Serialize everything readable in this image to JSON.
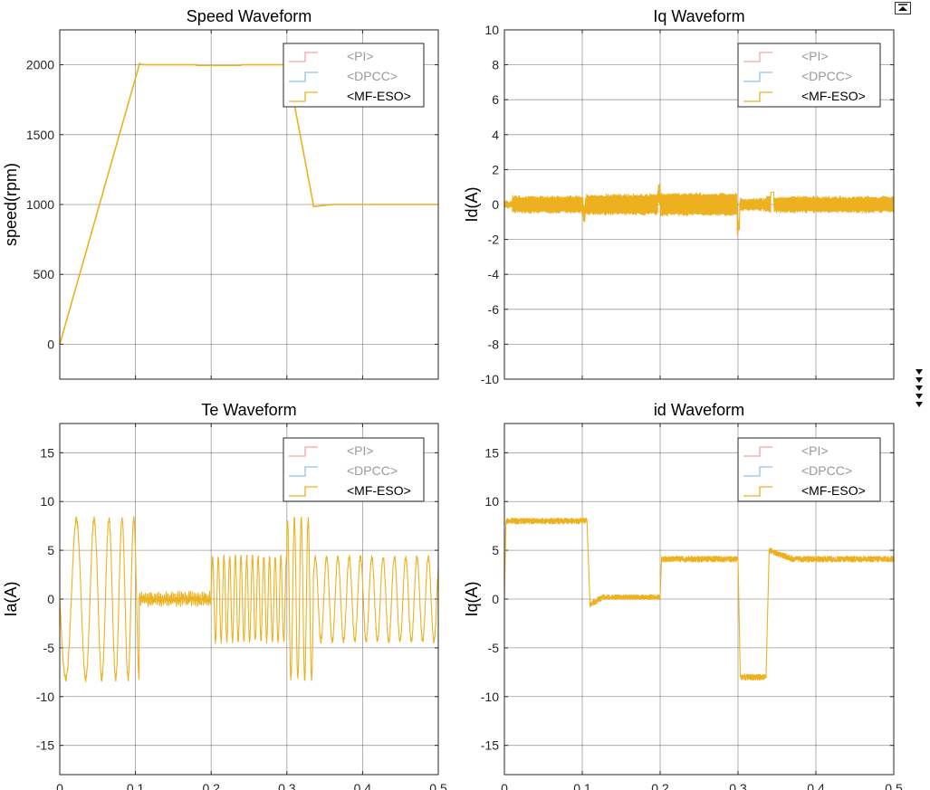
{
  "colors": {
    "pi": "#F4A3A0",
    "dpcc": "#8FC3E9",
    "mf_eso": "#EDB120",
    "grid": "#262626",
    "legend_dim_text": "#999999",
    "legend_text": "#000000"
  },
  "toolbar": {
    "expand_icon": "expand-up-icon"
  },
  "chart_data": [
    {
      "type": "line",
      "title": "Speed Waveform",
      "xlabel": "",
      "ylabel": "speed(rpm)",
      "xlim": [
        0,
        0.5
      ],
      "ylim": [
        -250,
        2250
      ],
      "xticks": [
        0,
        0.1,
        0.2,
        0.3,
        0.4,
        0.5
      ],
      "yticks": [
        0,
        500,
        1000,
        1500,
        2000
      ],
      "ytick_labels": [
        "0",
        "500",
        "1000",
        "1500",
        "2000"
      ],
      "show_xtick_labels": false,
      "grid": true,
      "legend": [
        "<PI>",
        "<DPCC>",
        "<MF-ESO>"
      ],
      "legend_position": "top-right",
      "series": [
        {
          "name": "<MF-ESO>",
          "kind": "speed"
        }
      ]
    },
    {
      "type": "line",
      "title": "Iq Waveform",
      "xlabel": "",
      "ylabel": "Id(A)",
      "xlim": [
        0,
        0.5
      ],
      "ylim": [
        -10,
        10
      ],
      "xticks": [
        0,
        0.1,
        0.2,
        0.3,
        0.4,
        0.5
      ],
      "yticks": [
        -10,
        -8,
        -6,
        -4,
        -2,
        0,
        2,
        4,
        6,
        8,
        10
      ],
      "ytick_labels": [
        "-10",
        "-8",
        "-6",
        "-4",
        "-2",
        "0",
        "2",
        "4",
        "6",
        "8",
        "10"
      ],
      "show_xtick_labels": false,
      "grid": true,
      "legend": [
        "<PI>",
        "<DPCC>",
        "<MF-ESO>"
      ],
      "legend_position": "top-right",
      "series": [
        {
          "name": "<MF-ESO>",
          "kind": "id_ripple"
        }
      ]
    },
    {
      "type": "line",
      "title": "Te Waveform",
      "xlabel": "",
      "ylabel": "Ia(A)",
      "xlim": [
        0,
        0.5
      ],
      "ylim": [
        -18,
        18
      ],
      "xticks": [
        0,
        0.1,
        0.2,
        0.3,
        0.4,
        0.5
      ],
      "xtick_labels": [
        "0",
        "0.1",
        "0.2",
        "0.3",
        "0.4",
        "0.5"
      ],
      "yticks": [
        -15,
        -10,
        -5,
        0,
        5,
        10,
        15
      ],
      "ytick_labels": [
        "-15",
        "-10",
        "-5",
        "0",
        "5",
        "10",
        "15"
      ],
      "show_xtick_labels": true,
      "grid": true,
      "legend": [
        "<PI>",
        "<DPCC>",
        "<MF-ESO>"
      ],
      "legend_position": "top-right",
      "series": [
        {
          "name": "<MF-ESO>",
          "kind": "phase_current"
        }
      ]
    },
    {
      "type": "line",
      "title": "id Waveform",
      "xlabel": "",
      "ylabel": "Iq(A)",
      "xlim": [
        0,
        0.5
      ],
      "ylim": [
        -18,
        18
      ],
      "xticks": [
        0,
        0.1,
        0.2,
        0.3,
        0.4,
        0.5
      ],
      "xtick_labels": [
        "0",
        "0.1",
        "0.2",
        "0.3",
        "0.4",
        "0.5"
      ],
      "yticks": [
        -15,
        -10,
        -5,
        0,
        5,
        10,
        15
      ],
      "ytick_labels": [
        "-15",
        "-10",
        "-5",
        "0",
        "5",
        "10",
        "15"
      ],
      "show_xtick_labels": true,
      "grid": true,
      "legend": [
        "<PI>",
        "<DPCC>",
        "<MF-ESO>"
      ],
      "legend_position": "top-right",
      "series": [
        {
          "name": "<MF-ESO>",
          "kind": "iq"
        }
      ]
    }
  ]
}
